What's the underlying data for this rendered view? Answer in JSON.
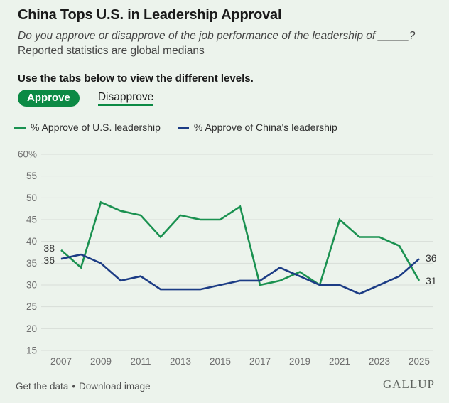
{
  "header": {
    "title": "China Tops U.S. in Leadership Approval",
    "subtitle_italic": "Do you approve or disapprove of the job performance of the leadership of _____?",
    "subtitle_note": "Reported statistics are global medians",
    "tabs_instruction": "Use the tabs below to view the different levels."
  },
  "tabs": [
    {
      "label": "Approve",
      "active": true
    },
    {
      "label": "Disapprove",
      "active": false
    }
  ],
  "legend": [
    {
      "label": "% Approve of U.S. leadership",
      "color": "#1a9150"
    },
    {
      "label": "% Approve of China's leadership",
      "color": "#1c3c85"
    }
  ],
  "colors": {
    "background": "#ecf3ec",
    "tab_active_bg": "#0c8a45",
    "us_line": "#1a9150",
    "china_line": "#1c3c85",
    "gridline": "#d7ded7",
    "tick_text": "#6f6f6f"
  },
  "chart_data": {
    "type": "line",
    "title": "China Tops U.S. in Leadership Approval",
    "x": [
      2007,
      2008,
      2009,
      2010,
      2011,
      2012,
      2013,
      2014,
      2015,
      2016,
      2017,
      2018,
      2019,
      2020,
      2021,
      2022,
      2023,
      2024,
      2025
    ],
    "series": [
      {
        "name": "% Approve of U.S. leadership",
        "color": "#1a9150",
        "values": [
          38,
          34,
          49,
          47,
          46,
          41,
          46,
          45,
          45,
          48,
          30,
          31,
          33,
          30,
          45,
          41,
          41,
          39,
          31
        ]
      },
      {
        "name": "% Approve of China's leadership",
        "color": "#1c3c85",
        "values": [
          36,
          37,
          35,
          31,
          32,
          29,
          29,
          29,
          30,
          31,
          31,
          34,
          32,
          30,
          30,
          28,
          30,
          32,
          36
        ]
      }
    ],
    "ylim": [
      15,
      60
    ],
    "yticks": [
      60,
      55,
      50,
      45,
      40,
      35,
      30,
      25,
      20,
      15
    ],
    "ytick_labels": [
      "60%",
      "55",
      "50",
      "45",
      "40",
      "35",
      "30",
      "25",
      "20",
      "15"
    ],
    "xticks": [
      2007,
      2009,
      2011,
      2013,
      2015,
      2017,
      2019,
      2021,
      2023,
      2025
    ],
    "point_labels": [
      {
        "series": 0,
        "x": 2007,
        "side": "start",
        "label": "38",
        "dy": -2
      },
      {
        "series": 1,
        "x": 2007,
        "side": "start",
        "label": "36",
        "dy": 3
      },
      {
        "series": 1,
        "x": 2025,
        "side": "end",
        "label": "36",
        "dy": 0
      },
      {
        "series": 0,
        "x": 2025,
        "side": "end",
        "label": "31",
        "dy": 1
      }
    ],
    "grid": true,
    "legend_position": "top"
  },
  "footer": {
    "link_data": "Get the data",
    "separator": "•",
    "link_image": "Download image",
    "logo": "GALLUP"
  }
}
